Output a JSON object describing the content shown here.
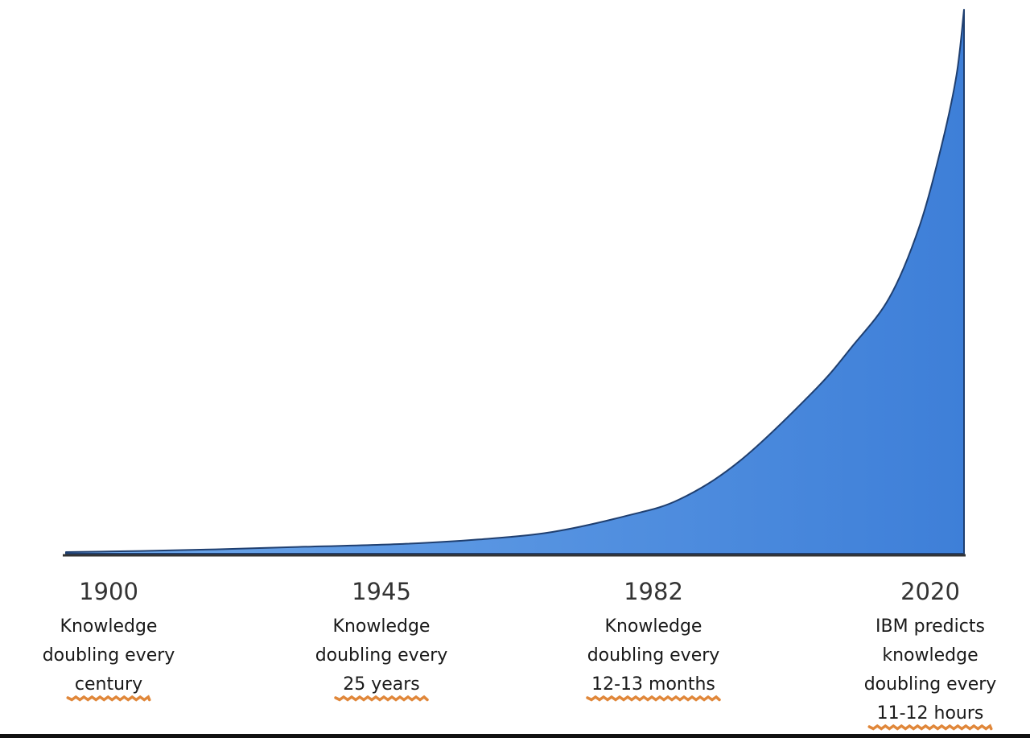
{
  "chart_data": {
    "type": "area",
    "title": "",
    "xlabel": "",
    "ylabel": "",
    "x": [
      1900,
      1910,
      1920,
      1930,
      1945,
      1955,
      1965,
      1975,
      1982,
      1990,
      2000,
      2005,
      2010,
      2014,
      2017,
      2019,
      2020
    ],
    "values": [
      0.3,
      0.5,
      0.8,
      1.2,
      1.8,
      2.6,
      4.0,
      7.0,
      10.0,
      17.0,
      30.0,
      38.0,
      47.0,
      60.0,
      75.0,
      88.0,
      100.0
    ],
    "xlim": [
      1900,
      2020
    ],
    "ylim": [
      0,
      100
    ],
    "grid": false,
    "colors": {
      "fill_light": "#6fa8ea",
      "fill_dark": "#3e7fd8",
      "outline": "#1f3f70",
      "axis": "#333333",
      "underline": "#e0873a"
    },
    "milestones": [
      {
        "year": "1900",
        "lines": [
          "Knowledge",
          "doubling every",
          "century"
        ]
      },
      {
        "year": "1945",
        "lines": [
          "Knowledge",
          "doubling every",
          "25 years"
        ]
      },
      {
        "year": "1982",
        "lines": [
          "Knowledge",
          "doubling every",
          "12-13 months"
        ]
      },
      {
        "year": "2020",
        "lines": [
          "IBM predicts",
          "knowledge",
          "doubling every",
          "11-12 hours"
        ]
      }
    ]
  }
}
